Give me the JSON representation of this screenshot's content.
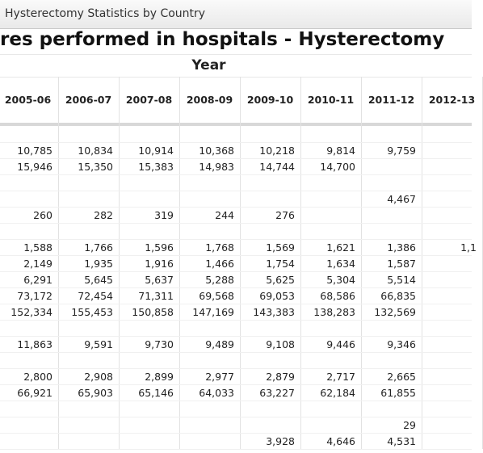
{
  "tab": {
    "title": "Hysterectomy Statistics by Country"
  },
  "header": {
    "title": "res performed in hospitals - Hysterectomy",
    "group": "Year"
  },
  "table": {
    "columns": [
      "2005-06",
      "2006-07",
      "2007-08",
      "2008-09",
      "2009-10",
      "2010-11",
      "2011-12",
      "2012-13"
    ],
    "rows": [
      [
        null,
        null,
        null,
        null,
        null,
        null,
        null,
        null
      ],
      [
        "10,785",
        "10,834",
        "10,914",
        "10,368",
        "10,218",
        "9,814",
        "9,759",
        null
      ],
      [
        "15,946",
        "15,350",
        "15,383",
        "14,983",
        "14,744",
        "14,700",
        null,
        null
      ],
      [
        null,
        null,
        null,
        null,
        null,
        null,
        null,
        null
      ],
      [
        null,
        null,
        null,
        null,
        null,
        null,
        "4,467",
        null
      ],
      [
        "260",
        "282",
        "319",
        "244",
        "276",
        null,
        null,
        null
      ],
      [
        null,
        null,
        null,
        null,
        null,
        null,
        null,
        null
      ],
      [
        "1,588",
        "1,766",
        "1,596",
        "1,768",
        "1,569",
        "1,621",
        "1,386",
        "1,1"
      ],
      [
        "2,149",
        "1,935",
        "1,916",
        "1,466",
        "1,754",
        "1,634",
        "1,587",
        null
      ],
      [
        "6,291",
        "5,645",
        "5,637",
        "5,288",
        "5,625",
        "5,304",
        "5,514",
        null
      ],
      [
        "73,172",
        "72,454",
        "71,311",
        "69,568",
        "69,053",
        "68,586",
        "66,835",
        null
      ],
      [
        "152,334",
        "155,453",
        "150,858",
        "147,169",
        "143,383",
        "138,283",
        "132,569",
        null
      ],
      [
        null,
        null,
        null,
        null,
        null,
        null,
        null,
        null
      ],
      [
        "11,863",
        "9,591",
        "9,730",
        "9,489",
        "9,108",
        "9,446",
        "9,346",
        null
      ],
      [
        null,
        null,
        null,
        null,
        null,
        null,
        null,
        null
      ],
      [
        "2,800",
        "2,908",
        "2,899",
        "2,977",
        "2,879",
        "2,717",
        "2,665",
        null
      ],
      [
        "66,921",
        "65,903",
        "65,146",
        "64,033",
        "63,227",
        "62,184",
        "61,855",
        null
      ],
      [
        null,
        null,
        null,
        null,
        null,
        null,
        null,
        null
      ],
      [
        null,
        null,
        null,
        null,
        null,
        null,
        "29",
        null
      ],
      [
        null,
        null,
        null,
        null,
        "3,928",
        "4,646",
        "4,531",
        null
      ]
    ]
  }
}
